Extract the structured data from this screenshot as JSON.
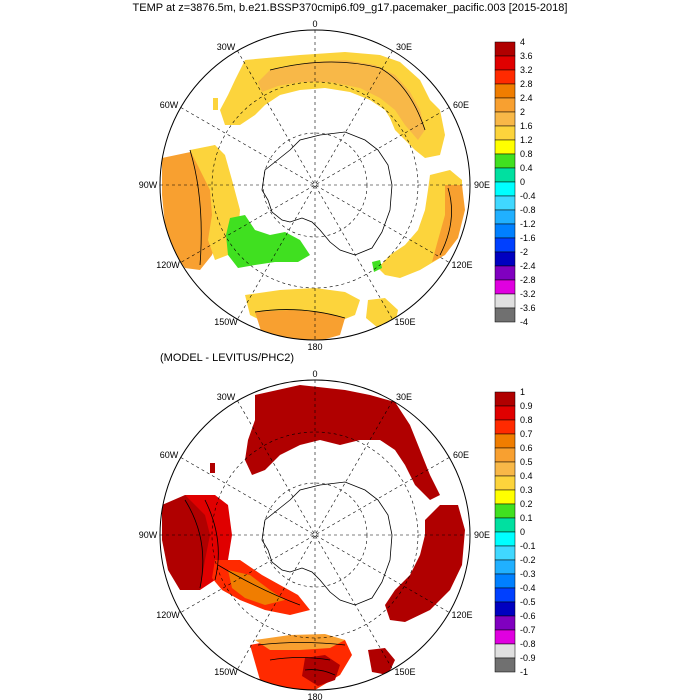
{
  "title_top": "TEMP at z=3876.5m, b.e21.BSSP370cmip6.f09_g17.pacemaker_pacific.003 [2015-2018]",
  "title_bottom": "(MODEL - LEVITUS/PHC2)",
  "map_labels": {
    "lon_0": "0",
    "lon_30e": "30E",
    "lon_60e": "60E",
    "lon_90e": "90E",
    "lon_120e": "120E",
    "lon_150e": "150E",
    "lon_180": "180",
    "lon_150w": "150W",
    "lon_120w": "120W",
    "lon_90w": "90W",
    "lon_60w": "60W",
    "lon_30w": "30W"
  },
  "colorbar_top": {
    "labels": [
      "4",
      "3.6",
      "3.2",
      "2.8",
      "2.4",
      "2",
      "1.6",
      "1.2",
      "0.8",
      "0.4",
      "0",
      "-0.4",
      "-0.8",
      "-1.2",
      "-1.6",
      "-2",
      "-2.4",
      "-2.8",
      "-3.2",
      "-3.6",
      "-4"
    ]
  },
  "colorbar_bottom": {
    "labels": [
      "1",
      "0.9",
      "0.8",
      "0.7",
      "0.6",
      "0.5",
      "0.4",
      "0.3",
      "0.2",
      "0.1",
      "0",
      "-0.1",
      "-0.2",
      "-0.3",
      "-0.4",
      "-0.5",
      "-0.6",
      "-0.7",
      "-0.8",
      "-0.9",
      "-1"
    ]
  },
  "colors": {
    "palette": [
      "#b00000",
      "#e00000",
      "#ff2a00",
      "#f07d00",
      "#f8a030",
      "#f8b848",
      "#fcd43c",
      "#ffff00",
      "#40e020",
      "#00e0a0",
      "#00ffff",
      "#40d8ff",
      "#20b0ff",
      "#0080ff",
      "#0040ff",
      "#0000c0",
      "#8000c0",
      "#e000e0",
      "#e0e0e0",
      "#707070"
    ],
    "warm_yellow": "#fcd43c",
    "warm_orange": "#f8a030",
    "green": "#40e020",
    "dark_red": "#b00000",
    "red": "#e00000",
    "orange_red": "#ff2a00"
  }
}
